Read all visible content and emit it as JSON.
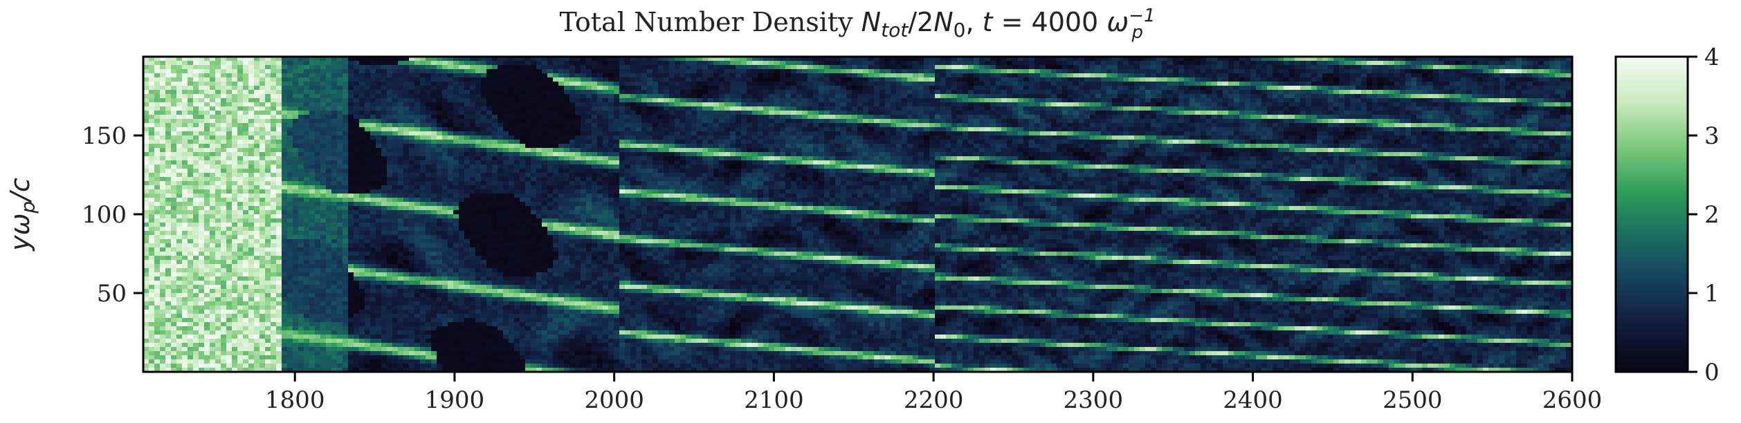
{
  "chart_data": {
    "type": "heatmap",
    "title_parts": {
      "lead": "Total Number Density ",
      "n_sym": "N",
      "n_sub": "tot",
      "slash": "/2",
      "n0_sym": "N",
      "n0_sub": "0",
      "comma": ", ",
      "t_sym": "t",
      "equals": " = 4000 ",
      "omega_sym": "ω",
      "omega_sub": "p",
      "omega_sup": "−1"
    },
    "ylabel_parts": {
      "y": "yω",
      "sub": "p",
      "rest": "/c"
    },
    "x_ticks": [
      1800,
      1900,
      2000,
      2100,
      2200,
      2300,
      2400,
      2500,
      2600
    ],
    "y_ticks": [
      50,
      100,
      150
    ],
    "xlim": [
      1705,
      2600
    ],
    "ylim": [
      0,
      200
    ],
    "colorbar": {
      "ticks": [
        0,
        1,
        2,
        3,
        4
      ],
      "range": [
        0,
        4
      ],
      "colormap": "cubehelix-green",
      "stops": [
        "#0a0513",
        "#111a3a",
        "#163f5c",
        "#1a6b5f",
        "#2f9d5a",
        "#7dca7c",
        "#c9ebc0",
        "#f4fbf3"
      ]
    },
    "field_description_regions": [
      {
        "x_range": [
          1705,
          1800
        ],
        "level": 3.2
      },
      {
        "x_range": [
          1800,
          2000
        ],
        "level": 1.2
      },
      {
        "x_range": [
          2000,
          2200
        ],
        "level": 1.0
      },
      {
        "x_range": [
          2200,
          2600
        ],
        "level": 0.9
      }
    ]
  }
}
